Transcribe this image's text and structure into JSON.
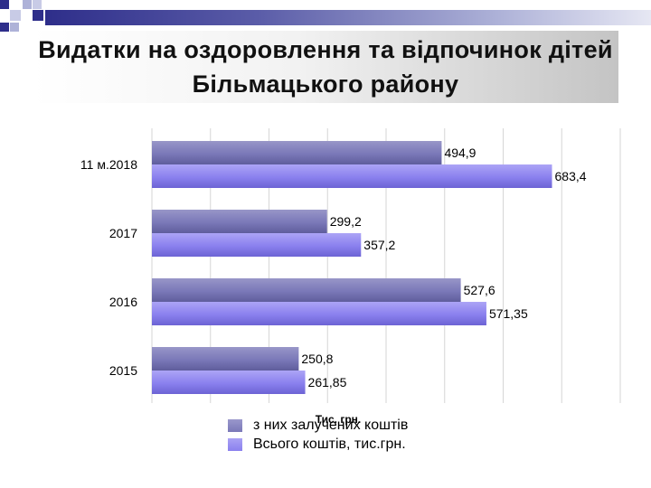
{
  "title": "Видатки на оздоровлення та відпочинок дітей Більмацького району",
  "colors": {
    "series_1": "#7a78b8",
    "series_2": "#8a80ee",
    "deco_dark": "#2e2e8a",
    "deco_light": "#aeb2d8"
  },
  "chart_data": {
    "type": "bar",
    "orientation": "horizontal",
    "categories": [
      "11 м.2018",
      "2017",
      "2016",
      "2015"
    ],
    "series": [
      {
        "name": "з них залучених коштів",
        "values": [
          494.9,
          299.2,
          527.6,
          250.8
        ],
        "labels": [
          "494,9",
          "299,2",
          "527,6",
          "250,8"
        ]
      },
      {
        "name": "Всього коштів, тис.грн.",
        "values": [
          683.4,
          357.2,
          571.35,
          261.85
        ],
        "labels": [
          "683,4",
          "357,2",
          "571,35",
          "261,85"
        ]
      }
    ],
    "xlabel": "Тис. грн.",
    "xlim": [
      0,
      800
    ],
    "grid": true,
    "legend_position": "bottom"
  }
}
